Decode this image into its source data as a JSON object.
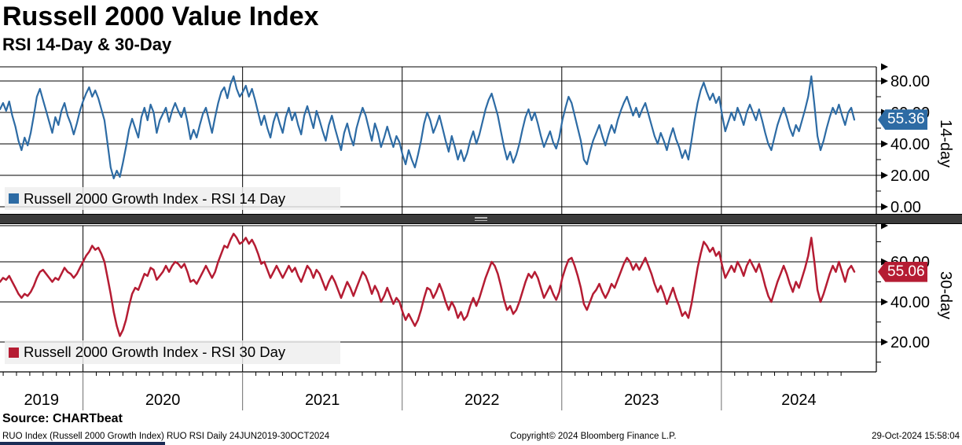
{
  "header": {
    "title": "Russell 2000 Value Index",
    "subtitle": "RSI 14-Day & 30-Day"
  },
  "footer": {
    "source": "Source: CHARTbeat",
    "left": "RUO Index (Russell 2000 Growth Index) RUO RSI  Daily 24JUN2019-30OCT2024",
    "center": "Copyright© 2024 Bloomberg Finance L.P.",
    "right": "29-Oct-2024 15:58:04"
  },
  "chart_data": {
    "type": "line",
    "title": "Russell 2000 Value Index — RSI 14-Day & 30-Day",
    "x_axis": {
      "start": 2019.48,
      "end": 2024.833,
      "tick_years": [
        2019,
        2020,
        2021,
        2022,
        2023,
        2024
      ],
      "range_note": "Daily 24JUN2019-30OCT2024"
    },
    "grid": "on",
    "panels": [
      {
        "name": "RSI 14 Day",
        "legend": "Russell 2000 Growth Index - RSI 14 Day",
        "axis_label": "14-day",
        "color": "#2d6ba4",
        "last_value": "55.36",
        "y_tick_values": [
          80,
          60,
          40,
          20,
          0
        ],
        "y_tick_labels": [
          "80.00",
          "60.00",
          "40.00",
          "20.00",
          "0.00"
        ],
        "y_minor_ticks": [
          70,
          50,
          30,
          10
        ],
        "ylim": [
          -2.5,
          89
        ],
        "values": [
          62,
          66,
          61,
          67,
          58,
          51,
          42,
          36,
          44,
          39,
          47,
          58,
          70,
          75,
          68,
          61,
          54,
          47,
          57,
          52,
          61,
          66,
          58,
          53,
          46,
          53,
          61,
          67,
          72,
          76,
          70,
          74,
          69,
          62,
          55,
          40,
          25,
          18,
          23,
          19,
          28,
          38,
          49,
          56,
          50,
          44,
          57,
          63,
          55,
          65,
          60,
          47,
          55,
          59,
          63,
          54,
          61,
          66,
          61,
          57,
          63,
          54,
          43,
          49,
          44,
          52,
          59,
          63,
          55,
          47,
          57,
          66,
          73,
          76,
          69,
          78,
          83,
          75,
          70,
          73,
          77,
          70,
          75,
          68,
          60,
          52,
          58,
          50,
          44,
          54,
          60,
          53,
          47,
          57,
          63,
          55,
          60,
          52,
          46,
          58,
          64,
          57,
          50,
          61,
          55,
          48,
          42,
          52,
          58,
          50,
          43,
          36,
          47,
          53,
          45,
          39,
          50,
          57,
          63,
          58,
          50,
          42,
          53,
          47,
          38,
          44,
          51,
          44,
          38,
          45,
          41,
          33,
          27,
          36,
          30,
          25,
          33,
          42,
          53,
          60,
          55,
          47,
          52,
          58,
          50,
          42,
          35,
          45,
          38,
          30,
          36,
          29,
          34,
          42,
          48,
          40,
          46,
          54,
          62,
          68,
          72,
          65,
          58,
          48,
          38,
          30,
          35,
          28,
          33,
          40,
          49,
          57,
          62,
          55,
          60,
          53,
          45,
          38,
          43,
          48,
          41,
          37,
          44,
          55,
          63,
          70,
          66,
          58,
          50,
          42,
          30,
          27,
          35,
          42,
          47,
          52,
          45,
          39,
          46,
          52,
          47,
          55,
          61,
          66,
          70,
          64,
          58,
          63,
          57,
          62,
          66,
          59,
          52,
          45,
          40,
          47,
          42,
          36,
          44,
          50,
          43,
          38,
          31,
          36,
          30,
          42,
          55,
          66,
          74,
          79,
          73,
          68,
          72,
          66,
          70,
          58,
          48,
          54,
          60,
          55,
          63,
          58,
          52,
          60,
          65,
          60,
          55,
          62,
          55,
          47,
          40,
          36,
          44,
          52,
          58,
          63,
          57,
          50,
          45,
          52,
          48,
          55,
          62,
          70,
          83,
          65,
          45,
          36,
          42,
          50,
          57,
          63,
          59,
          65,
          58,
          52,
          60,
          63,
          55.36
        ]
      },
      {
        "name": "RSI 30 Day",
        "legend": "Russell 2000 Growth Index - RSI 30 Day",
        "axis_label": "30-day",
        "color": "#b51c33",
        "last_value": "55.06",
        "y_tick_values": [
          60,
          40,
          20
        ],
        "y_tick_labels": [
          "60.00",
          "40.00",
          "20.00"
        ],
        "y_minor_ticks": [
          70,
          50,
          30,
          10
        ],
        "ylim": [
          5,
          78
        ],
        "values": [
          50,
          52,
          51,
          53,
          50,
          47,
          44,
          42,
          44,
          43,
          45,
          48,
          52,
          55,
          56,
          54,
          52,
          50,
          52,
          51,
          54,
          57,
          55,
          54,
          52,
          54,
          57,
          60,
          63,
          65,
          68,
          66,
          67,
          64,
          60,
          52,
          44,
          35,
          28,
          23,
          26,
          31,
          38,
          44,
          47,
          46,
          50,
          54,
          53,
          57,
          56,
          51,
          53,
          55,
          58,
          55,
          58,
          60,
          59,
          57,
          59,
          55,
          50,
          51,
          49,
          52,
          55,
          58,
          55,
          52,
          55,
          60,
          64,
          68,
          67,
          71,
          74,
          72,
          69,
          70,
          72,
          69,
          71,
          68,
          64,
          59,
          60,
          56,
          52,
          55,
          58,
          55,
          52,
          55,
          58,
          55,
          57,
          53,
          50,
          54,
          58,
          56,
          52,
          56,
          54,
          50,
          46,
          50,
          53,
          50,
          46,
          42,
          46,
          50,
          47,
          43,
          47,
          51,
          55,
          53,
          49,
          44,
          48,
          45,
          40,
          43,
          47,
          43,
          39,
          42,
          40,
          35,
          31,
          34,
          31,
          28,
          31,
          36,
          42,
          47,
          46,
          42,
          45,
          49,
          45,
          40,
          36,
          40,
          37,
          32,
          35,
          31,
          33,
          38,
          42,
          38,
          42,
          47,
          52,
          56,
          60,
          58,
          54,
          48,
          41,
          36,
          38,
          34,
          36,
          40,
          45,
          50,
          54,
          52,
          55,
          52,
          47,
          42,
          45,
          48,
          44,
          41,
          45,
          52,
          57,
          61,
          62,
          58,
          53,
          47,
          39,
          36,
          40,
          44,
          46,
          49,
          45,
          42,
          45,
          49,
          47,
          51,
          55,
          59,
          62,
          60,
          56,
          59,
          56,
          59,
          62,
          58,
          54,
          49,
          45,
          48,
          44,
          39,
          43,
          47,
          42,
          38,
          33,
          35,
          32,
          39,
          48,
          57,
          64,
          70,
          68,
          65,
          67,
          63,
          65,
          58,
          52,
          55,
          58,
          55,
          60,
          57,
          53,
          58,
          61,
          58,
          55,
          59,
          54,
          48,
          43,
          40,
          45,
          50,
          54,
          58,
          54,
          49,
          45,
          50,
          47,
          52,
          57,
          63,
          72,
          60,
          46,
          40,
          44,
          49,
          54,
          58,
          55,
          60,
          55,
          50,
          56,
          58,
          55.06
        ]
      }
    ]
  }
}
